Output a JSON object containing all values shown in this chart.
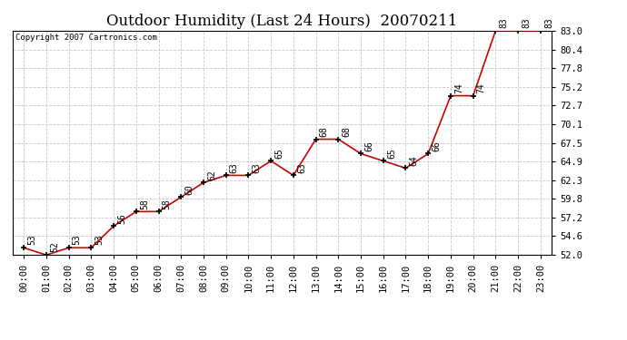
{
  "title": "Outdoor Humidity (Last 24 Hours)  20070211",
  "copyright": "Copyright 2007 Cartronics.com",
  "x_labels": [
    "00:00",
    "01:00",
    "02:00",
    "03:00",
    "04:00",
    "05:00",
    "06:00",
    "07:00",
    "08:00",
    "09:00",
    "10:00",
    "11:00",
    "12:00",
    "13:00",
    "14:00",
    "15:00",
    "16:00",
    "17:00",
    "18:00",
    "19:00",
    "20:00",
    "21:00",
    "22:00",
    "23:00"
  ],
  "y_values": [
    53,
    52,
    53,
    53,
    56,
    58,
    58,
    60,
    62,
    63,
    63,
    65,
    63,
    68,
    68,
    66,
    65,
    64,
    66,
    74,
    74,
    83,
    83,
    83
  ],
  "point_labels": [
    "53",
    "52",
    "53",
    "53",
    "56",
    "58",
    "58",
    "60",
    "62",
    "63",
    "63",
    "65",
    "63",
    "68",
    "68",
    "66",
    "65",
    "64",
    "66",
    "74",
    "74",
    "83",
    "83",
    "83"
  ],
  "line_color": "#cc0000",
  "marker_color": "#000000",
  "bg_color": "#ffffff",
  "grid_color": "#c8c8c8",
  "ymin": 52.0,
  "ymax": 83.0,
  "yticks": [
    52.0,
    54.6,
    57.2,
    59.8,
    62.3,
    64.9,
    67.5,
    70.1,
    72.7,
    75.2,
    77.8,
    80.4,
    83.0
  ],
  "ytick_labels": [
    "52.0",
    "54.6",
    "57.2",
    "59.8",
    "62.3",
    "64.9",
    "67.5",
    "70.1",
    "72.7",
    "75.2",
    "77.8",
    "80.4",
    "83.0"
  ],
  "title_fontsize": 12,
  "label_fontsize": 7,
  "tick_fontsize": 7.5,
  "copyright_fontsize": 6.5,
  "annot_fontsize": 7
}
